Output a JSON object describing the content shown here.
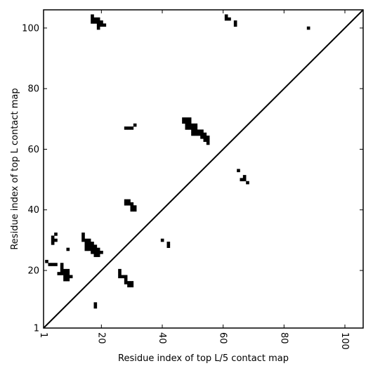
{
  "chart_data": {
    "type": "heatmap",
    "title": "",
    "xlabel": "Residue index of top L/5 contact map",
    "ylabel": "Residue index of top L contact map",
    "xlim": [
      1,
      106
    ],
    "ylim": [
      1,
      106
    ],
    "xticks": [
      1,
      20,
      40,
      60,
      80,
      100
    ],
    "yticks": [
      1,
      20,
      40,
      60,
      80,
      100
    ],
    "grid": false,
    "legend": "none",
    "diagonal": true,
    "mark_color": "#000000",
    "upper_triangle_contacts": [
      [
        17,
        104
      ],
      [
        17,
        103
      ],
      [
        18,
        103
      ],
      [
        19,
        103
      ],
      [
        17,
        102
      ],
      [
        18,
        102
      ],
      [
        19,
        102
      ],
      [
        20,
        102
      ],
      [
        19,
        101
      ],
      [
        20,
        101
      ],
      [
        21,
        101
      ],
      [
        19,
        100
      ],
      [
        61,
        104
      ],
      [
        61,
        103
      ],
      [
        62,
        103
      ],
      [
        64,
        102
      ],
      [
        64,
        101
      ],
      [
        88,
        100
      ],
      [
        28,
        67
      ],
      [
        29,
        67
      ],
      [
        30,
        67
      ],
      [
        31,
        68
      ],
      [
        47,
        70
      ],
      [
        48,
        70
      ],
      [
        49,
        70
      ],
      [
        47,
        69
      ],
      [
        48,
        69
      ],
      [
        49,
        69
      ],
      [
        48,
        68
      ],
      [
        49,
        68
      ],
      [
        50,
        68
      ],
      [
        51,
        68
      ],
      [
        48,
        67
      ],
      [
        49,
        67
      ],
      [
        50,
        67
      ],
      [
        51,
        67
      ],
      [
        50,
        66
      ],
      [
        51,
        66
      ],
      [
        52,
        66
      ],
      [
        53,
        66
      ],
      [
        50,
        65
      ],
      [
        51,
        65
      ],
      [
        52,
        65
      ],
      [
        53,
        65
      ],
      [
        54,
        65
      ],
      [
        53,
        64
      ],
      [
        54,
        64
      ],
      [
        55,
        64
      ],
      [
        54,
        63
      ],
      [
        55,
        63
      ],
      [
        55,
        62
      ],
      [
        28,
        43
      ],
      [
        29,
        43
      ],
      [
        28,
        42
      ],
      [
        29,
        42
      ],
      [
        30,
        42
      ],
      [
        30,
        41
      ],
      [
        31,
        41
      ],
      [
        30,
        40
      ],
      [
        31,
        40
      ],
      [
        65,
        53
      ],
      [
        67,
        51
      ],
      [
        66,
        50
      ],
      [
        67,
        50
      ],
      [
        68,
        49
      ]
    ],
    "lower_triangle_contacts": [
      [
        5,
        32
      ],
      [
        4,
        31
      ],
      [
        4,
        30
      ],
      [
        5,
        30
      ],
      [
        4,
        29
      ],
      [
        9,
        27
      ],
      [
        14,
        32
      ],
      [
        14,
        31
      ],
      [
        14,
        30
      ],
      [
        15,
        30
      ],
      [
        16,
        30
      ],
      [
        15,
        29
      ],
      [
        16,
        29
      ],
      [
        17,
        29
      ],
      [
        15,
        28
      ],
      [
        16,
        28
      ],
      [
        17,
        28
      ],
      [
        18,
        28
      ],
      [
        15,
        27
      ],
      [
        16,
        27
      ],
      [
        17,
        27
      ],
      [
        18,
        27
      ],
      [
        19,
        27
      ],
      [
        17,
        26
      ],
      [
        18,
        26
      ],
      [
        19,
        26
      ],
      [
        20,
        26
      ],
      [
        18,
        25
      ],
      [
        19,
        25
      ],
      [
        40,
        30
      ],
      [
        42,
        29
      ],
      [
        42,
        28
      ],
      [
        2,
        23
      ],
      [
        3,
        22
      ],
      [
        4,
        22
      ],
      [
        5,
        22
      ],
      [
        7,
        22
      ],
      [
        7,
        21
      ],
      [
        7,
        20
      ],
      [
        8,
        20
      ],
      [
        9,
        20
      ],
      [
        6,
        19
      ],
      [
        7,
        19
      ],
      [
        8,
        19
      ],
      [
        9,
        19
      ],
      [
        8,
        18
      ],
      [
        9,
        18
      ],
      [
        10,
        18
      ],
      [
        8,
        17
      ],
      [
        9,
        17
      ],
      [
        26,
        20
      ],
      [
        26,
        19
      ],
      [
        26,
        18
      ],
      [
        27,
        18
      ],
      [
        28,
        18
      ],
      [
        28,
        17
      ],
      [
        28,
        16
      ],
      [
        29,
        16
      ],
      [
        30,
        16
      ],
      [
        29,
        15
      ],
      [
        30,
        15
      ],
      [
        18,
        9
      ],
      [
        18,
        8
      ]
    ]
  }
}
